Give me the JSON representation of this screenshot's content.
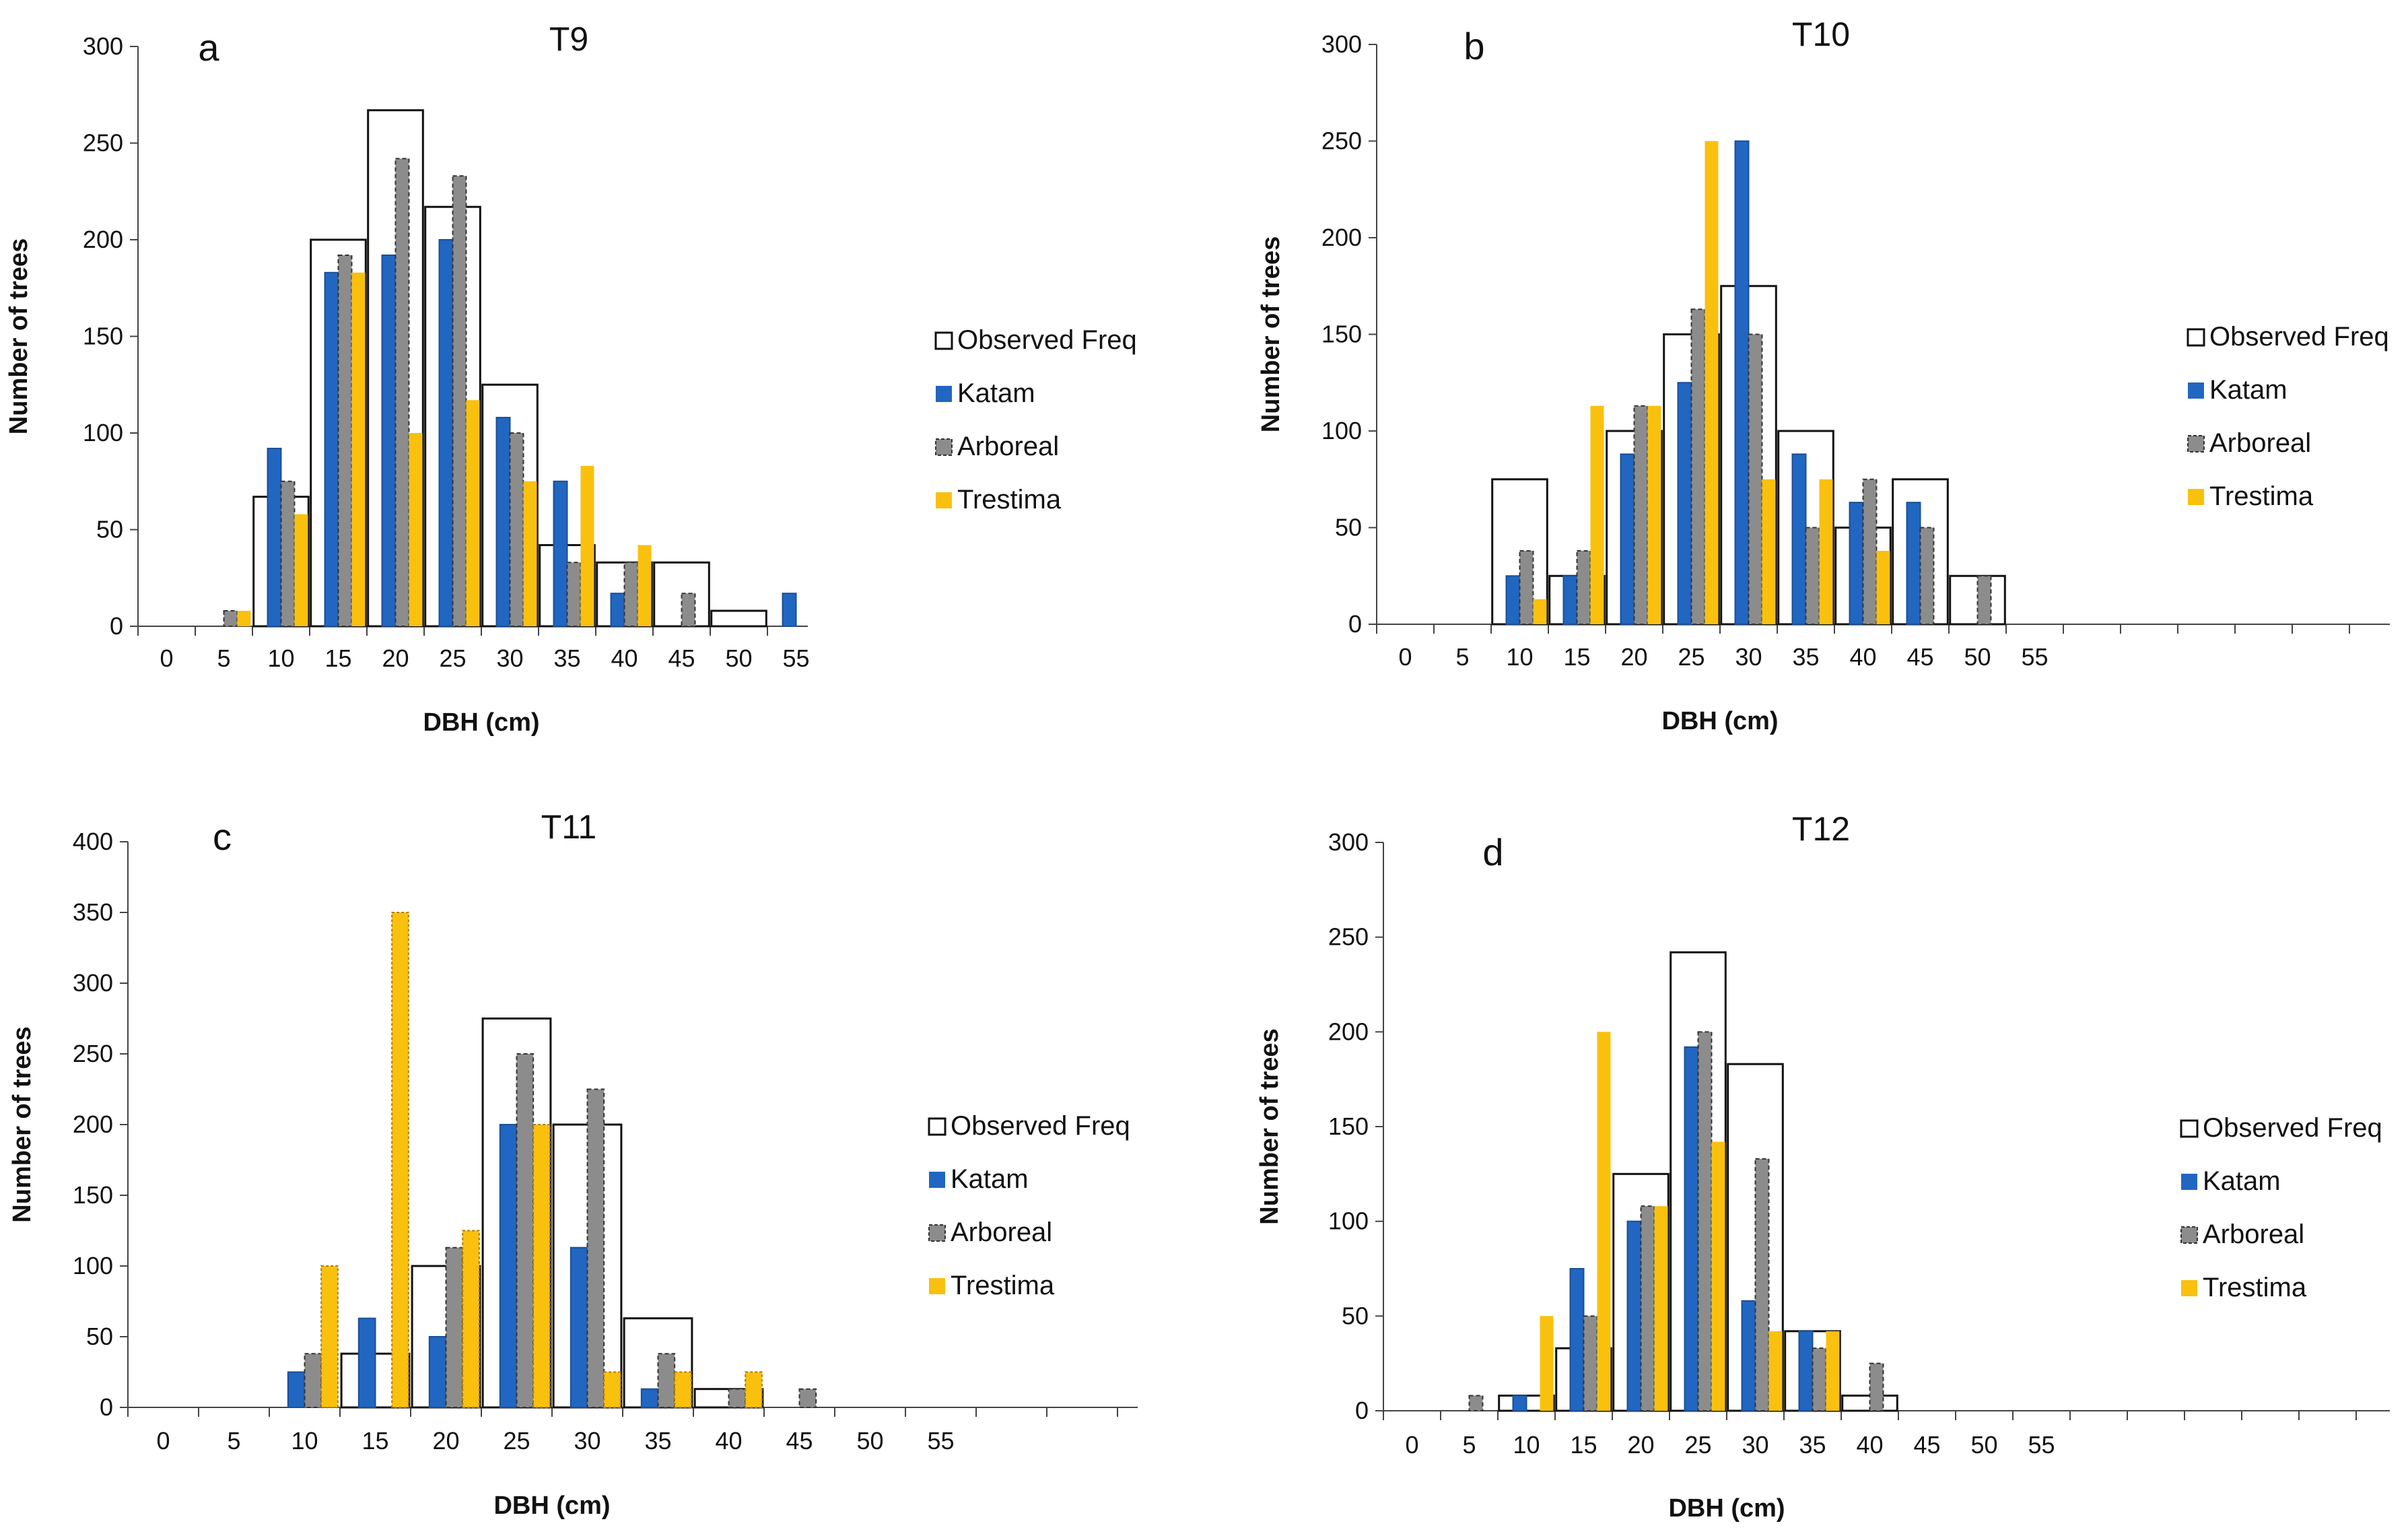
{
  "legend": [
    "Observed Freq",
    "Katam",
    "Arboreal",
    "Trestima"
  ],
  "colors": {
    "observed": "#ffffff",
    "katam": "#2166c1",
    "arboreal": "#8c8c8c",
    "trestima": "#f9c10e"
  },
  "chart_data": [
    {
      "type": "bar",
      "letter": "a",
      "title": "T9",
      "xlabel": "DBH (cm)",
      "ylabel": "Number of trees",
      "ylim": [
        0,
        300
      ],
      "yticks": [
        0,
        50,
        100,
        150,
        200,
        250,
        300
      ],
      "categories": [
        "0",
        "5",
        "10",
        "15",
        "20",
        "25",
        "30",
        "35",
        "40",
        "45",
        "50",
        "55"
      ],
      "legend_position": "right",
      "series": [
        {
          "name": "Observed Freq",
          "values": [
            0,
            0,
            67,
            200,
            267,
            217,
            125,
            42,
            33,
            33,
            8,
            0
          ]
        },
        {
          "name": "Katam",
          "values": [
            0,
            0,
            92,
            183,
            192,
            200,
            108,
            75,
            17,
            0,
            0,
            17
          ]
        },
        {
          "name": "Arboreal",
          "values": [
            0,
            8,
            75,
            192,
            242,
            233,
            100,
            33,
            33,
            17,
            0,
            0
          ]
        },
        {
          "name": "Trestima",
          "values": [
            0,
            8,
            58,
            183,
            100,
            117,
            75,
            83,
            42,
            0,
            0,
            0
          ]
        }
      ]
    },
    {
      "type": "bar",
      "letter": "b",
      "title": "T10",
      "xlabel": "DBH (cm)",
      "ylabel": "Number of trees",
      "ylim": [
        0,
        300
      ],
      "yticks": [
        0,
        50,
        100,
        150,
        200,
        250,
        300
      ],
      "categories": [
        "0",
        "5",
        "10",
        "15",
        "20",
        "25",
        "30",
        "35",
        "40",
        "45",
        "50",
        "55"
      ],
      "legend_position": "right",
      "series": [
        {
          "name": "Observed Freq",
          "values": [
            0,
            0,
            75,
            25,
            100,
            150,
            175,
            100,
            50,
            75,
            25,
            0
          ]
        },
        {
          "name": "Katam",
          "values": [
            0,
            0,
            25,
            25,
            88,
            125,
            250,
            88,
            63,
            63,
            0,
            0
          ]
        },
        {
          "name": "Arboreal",
          "values": [
            0,
            0,
            38,
            38,
            113,
            163,
            150,
            50,
            75,
            50,
            25,
            0
          ]
        },
        {
          "name": "Trestima",
          "values": [
            0,
            0,
            13,
            113,
            113,
            250,
            75,
            75,
            38,
            0,
            0,
            0
          ]
        }
      ]
    },
    {
      "type": "bar",
      "letter": "c",
      "title": "T11",
      "xlabel": "DBH (cm)",
      "ylabel": "Number of trees",
      "ylim": [
        0,
        400
      ],
      "yticks": [
        0,
        50,
        100,
        150,
        200,
        250,
        300,
        350,
        400
      ],
      "categories": [
        "0",
        "5",
        "10",
        "15",
        "20",
        "25",
        "30",
        "35",
        "40",
        "45",
        "50",
        "55"
      ],
      "legend_position": "right",
      "series": [
        {
          "name": "Observed Freq",
          "values": [
            0,
            0,
            0,
            38,
            100,
            275,
            200,
            63,
            13,
            0,
            0,
            0
          ]
        },
        {
          "name": "Katam",
          "values": [
            0,
            0,
            25,
            63,
            50,
            200,
            113,
            13,
            0,
            0,
            0,
            0
          ]
        },
        {
          "name": "Arboreal",
          "values": [
            0,
            0,
            38,
            0,
            113,
            250,
            225,
            38,
            13,
            13,
            0,
            0
          ]
        },
        {
          "name": "Trestima",
          "values": [
            0,
            0,
            100,
            350,
            125,
            200,
            25,
            25,
            25,
            0,
            0,
            0
          ]
        }
      ]
    },
    {
      "type": "bar",
      "letter": "d",
      "title": "T12",
      "xlabel": "DBH (cm)",
      "ylabel": "Number of trees",
      "ylim": [
        0,
        300
      ],
      "yticks": [
        0,
        50,
        100,
        150,
        200,
        250,
        300
      ],
      "categories": [
        "0",
        "5",
        "10",
        "15",
        "20",
        "25",
        "30",
        "35",
        "40",
        "45",
        "50",
        "55"
      ],
      "legend_position": "right",
      "series": [
        {
          "name": "Observed Freq",
          "values": [
            0,
            0,
            8,
            33,
            125,
            242,
            183,
            42,
            8,
            0,
            0,
            0
          ]
        },
        {
          "name": "Katam",
          "values": [
            0,
            0,
            8,
            75,
            100,
            192,
            58,
            42,
            0,
            0,
            0,
            0
          ]
        },
        {
          "name": "Arboreal",
          "values": [
            0,
            8,
            0,
            50,
            108,
            200,
            133,
            33,
            25,
            0,
            0,
            0
          ]
        },
        {
          "name": "Trestima",
          "values": [
            0,
            0,
            50,
            200,
            108,
            142,
            42,
            42,
            0,
            0,
            0,
            0
          ]
        }
      ]
    }
  ]
}
